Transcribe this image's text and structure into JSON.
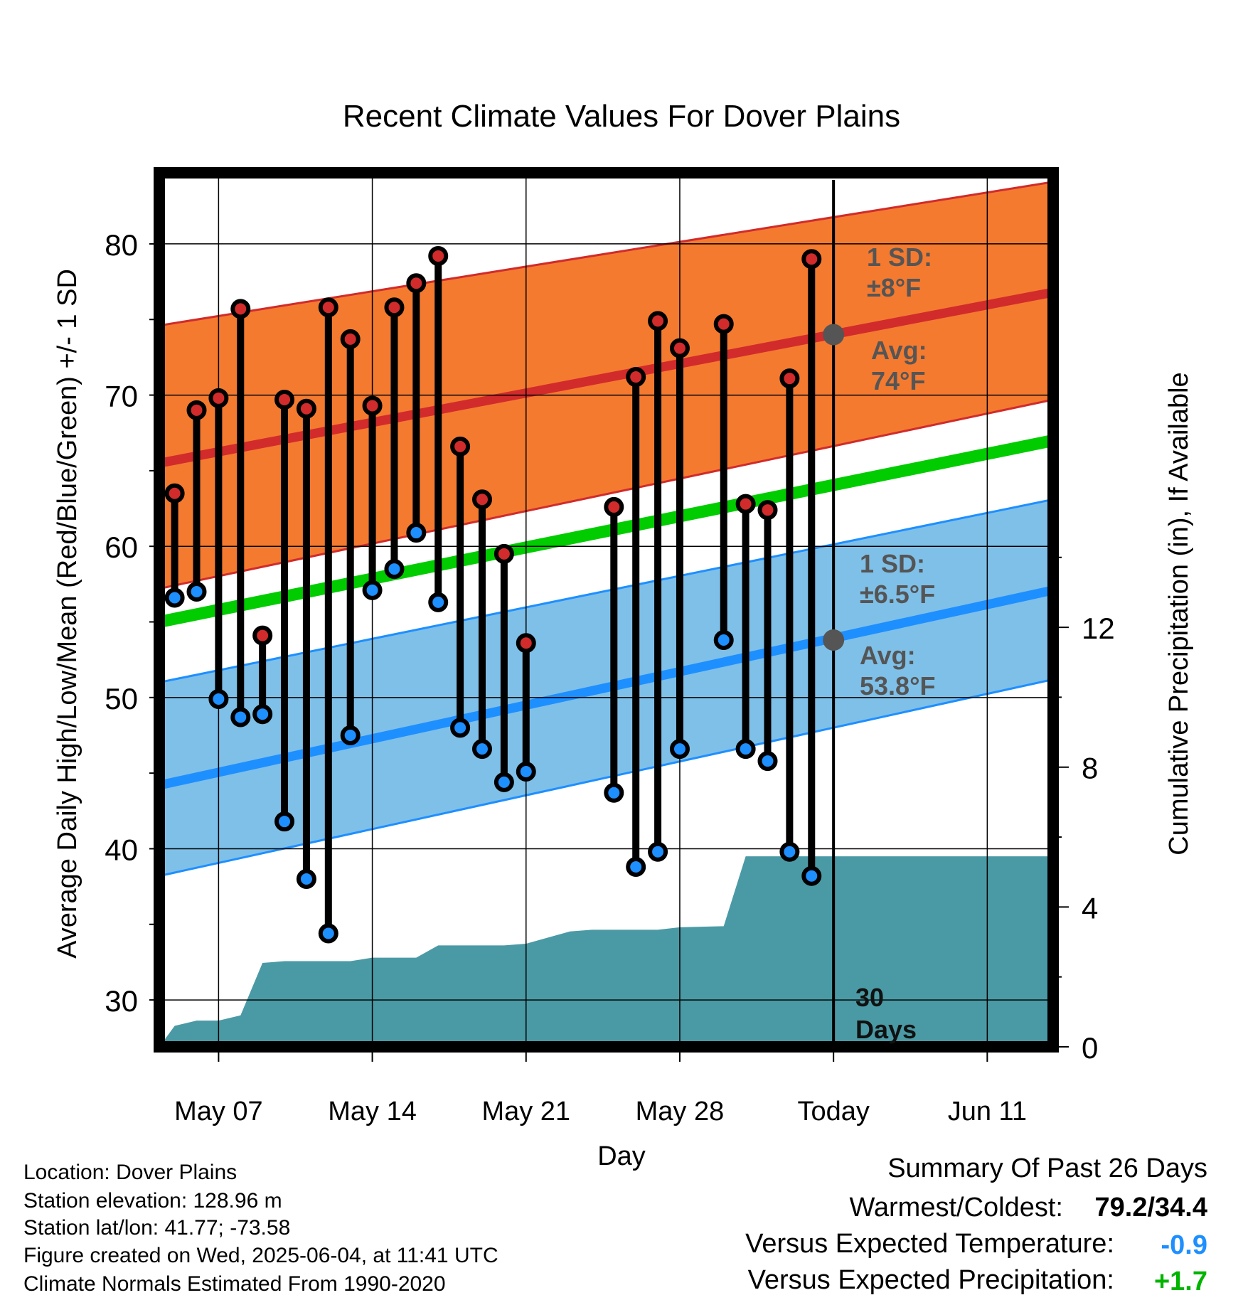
{
  "chart_data": {
    "type": "line",
    "title": "Recent Climate Values For Dover Plains",
    "xlabel": "Day",
    "ylabel_left": "Average Daily High/Low/Mean (Red/Blue/Green) +/- 1 SD",
    "ylabel_right": "Cumulative Precipitation (in), If Available",
    "x_tick_labels": [
      "May 07",
      "May 14",
      "May 21",
      "May 28",
      "Today",
      "Jun 11"
    ],
    "x_tick_days": [
      7,
      14,
      21,
      28,
      35,
      42
    ],
    "xlim": [
      4.3,
      45.0
    ],
    "ylim_left": [
      26.9,
      84.7
    ],
    "y_ticks_left": [
      30,
      40,
      50,
      60,
      70,
      80
    ],
    "ylim_right": [
      0,
      25
    ],
    "y_ticks_right": [
      0,
      4,
      8,
      12
    ],
    "normals": {
      "high_avg": [
        [
          4.3,
          65.5
        ],
        [
          45.0,
          76.8
        ]
      ],
      "high_upper": [
        [
          4.3,
          74.6
        ],
        [
          45.0,
          84.1
        ]
      ],
      "high_lower": [
        [
          4.3,
          57.2
        ],
        [
          45.0,
          69.7
        ]
      ],
      "mean": [
        [
          4.3,
          55.0
        ],
        [
          45.0,
          67.0
        ]
      ],
      "low_avg": [
        [
          4.3,
          44.2
        ],
        [
          45.0,
          57.1
        ]
      ],
      "low_upper": [
        [
          4.3,
          51.0
        ],
        [
          45.0,
          63.1
        ]
      ],
      "low_lower": [
        [
          4.3,
          38.2
        ],
        [
          45.0,
          51.2
        ]
      ]
    },
    "observations": [
      {
        "day": 5,
        "high": 63.5,
        "low": 56.6
      },
      {
        "day": 6,
        "high": 69.0,
        "low": 57.0
      },
      {
        "day": 7,
        "high": 69.8,
        "low": 49.9
      },
      {
        "day": 8,
        "high": 75.7,
        "low": 48.7
      },
      {
        "day": 9,
        "high": 54.1,
        "low": 48.9
      },
      {
        "day": 10,
        "high": 69.7,
        "low": 41.8
      },
      {
        "day": 11,
        "high": 69.1,
        "low": 38.0
      },
      {
        "day": 12,
        "high": 75.8,
        "low": 34.4
      },
      {
        "day": 13,
        "high": 73.7,
        "low": 47.5
      },
      {
        "day": 14,
        "high": 69.3,
        "low": 57.1
      },
      {
        "day": 15,
        "high": 75.8,
        "low": 58.5
      },
      {
        "day": 16,
        "high": 77.4,
        "low": 60.9
      },
      {
        "day": 17,
        "high": 79.2,
        "low": 56.3
      },
      {
        "day": 18,
        "high": 66.6,
        "low": 48.0
      },
      {
        "day": 19,
        "high": 63.1,
        "low": 46.6
      },
      {
        "day": 20,
        "high": 59.5,
        "low": 44.4
      },
      {
        "day": 21,
        "high": 53.6,
        "low": 45.1
      },
      {
        "day": 25,
        "high": 62.6,
        "low": 43.7
      },
      {
        "day": 26,
        "high": 71.2,
        "low": 38.8
      },
      {
        "day": 27,
        "high": 74.9,
        "low": 39.8
      },
      {
        "day": 28,
        "high": 73.1,
        "low": 46.6
      },
      {
        "day": 30,
        "high": 74.7,
        "low": 53.8
      },
      {
        "day": 31,
        "high": 62.8,
        "low": 46.6
      },
      {
        "day": 32,
        "high": 62.4,
        "low": 45.8
      },
      {
        "day": 33,
        "high": 71.1,
        "low": 39.8
      },
      {
        "day": 34,
        "high": 79.0,
        "low": 38.2
      }
    ],
    "precipitation": [
      [
        4.3,
        0.0
      ],
      [
        5.0,
        0.6
      ],
      [
        6.0,
        0.75
      ],
      [
        7.0,
        0.75
      ],
      [
        8.0,
        0.9
      ],
      [
        9.0,
        2.4
      ],
      [
        10.0,
        2.45
      ],
      [
        13.0,
        2.45
      ],
      [
        14.0,
        2.55
      ],
      [
        16.0,
        2.55
      ],
      [
        17.0,
        2.9
      ],
      [
        20.0,
        2.9
      ],
      [
        21.0,
        2.95
      ],
      [
        23.0,
        3.3
      ],
      [
        24.0,
        3.35
      ],
      [
        27.0,
        3.35
      ],
      [
        28.0,
        3.42
      ],
      [
        30.0,
        3.45
      ],
      [
        31.0,
        5.45
      ],
      [
        45.0,
        5.45
      ]
    ],
    "today_day": 35,
    "today_markers": {
      "high_avg": 74,
      "low_avg": 53.8
    },
    "annotations": {
      "high_sd": "1 SD:",
      "high_sd_value": "±8°F",
      "high_avg_label": "Avg:",
      "high_avg_value": "74°F",
      "low_sd": "1 SD:",
      "low_sd_value": "±6.5°F",
      "low_avg_label": "Avg:",
      "low_avg_value": "53.8°F",
      "days_value": "30",
      "days_unit": "Days"
    },
    "colors": {
      "high_band": "#f47a30",
      "high_line": "#d12b2b",
      "mean_line": "#00cc00",
      "low_band": "#7fc0e8",
      "low_line": "#1e8fff",
      "precip_fill": "#4a9aa5",
      "annotation": "#555555",
      "warmest_coldest": "#000000",
      "temp_anomaly": "#1e8fff",
      "precip_anomaly": "#00b400"
    }
  },
  "info": {
    "location": "Location: Dover Plains",
    "elevation": "Station elevation: 128.96 m",
    "latlon": "Station lat/lon: 41.77; -73.58",
    "created": "Figure created on Wed, 2025-06-04, at 11:41 UTC",
    "normals": "Climate Normals Estimated From 1990-2020"
  },
  "summary": {
    "title": "Summary Of Past 26 Days",
    "warmest_label": "Warmest/Coldest:",
    "warmest_value": "79.2/34.4",
    "temp_label": "Versus Expected Temperature:",
    "temp_value": "-0.9",
    "precip_label": "Versus Expected Precipitation:",
    "precip_value": "+1.7"
  }
}
